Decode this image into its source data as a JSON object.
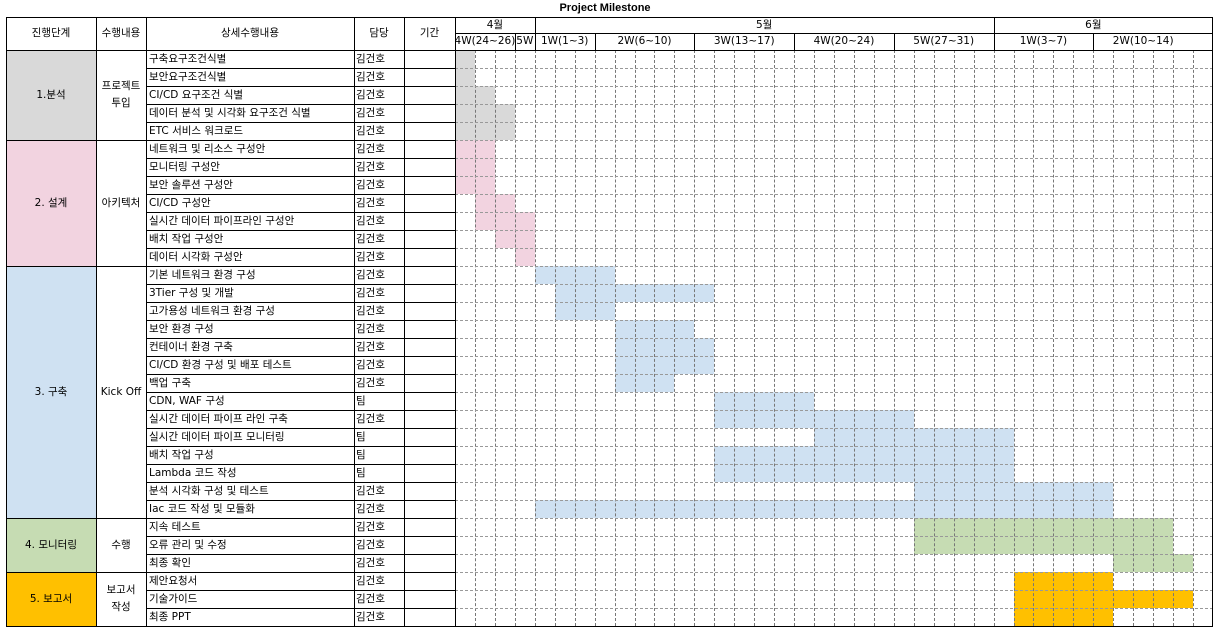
{
  "title": "Project Milestone",
  "headers": {
    "phase": "진행단계",
    "activity": "수행내용",
    "detail": "상세수행내용",
    "owner": "담당",
    "duration": "기간"
  },
  "months": [
    {
      "label": "4월",
      "span": 4
    },
    {
      "label": "5월",
      "span": 23
    },
    {
      "label": "6월",
      "span": 10
    }
  ],
  "weeks": [
    {
      "label": "4W(24~26)",
      "span": 3
    },
    {
      "label": "5W",
      "span": 1
    },
    {
      "label": "1W(1~3)",
      "span": 3
    },
    {
      "label": "2W(6~10)",
      "span": 5
    },
    {
      "label": "3W(13~17)",
      "span": 5
    },
    {
      "label": "4W(20~24)",
      "span": 5
    },
    {
      "label": "5W(27~31)",
      "span": 5
    },
    {
      "label": "1W(3~7)",
      "span": 5
    },
    {
      "label": "2W(10~14)",
      "span": 5
    }
  ],
  "phases": [
    {
      "name": "1.분석",
      "activity": "프로젝트\n투입",
      "color": "#d9d9d9",
      "rows": [
        0,
        4
      ]
    },
    {
      "name": "2. 설계",
      "activity": "아키텍처",
      "color": "#f2d3e0",
      "rows": [
        5,
        11
      ]
    },
    {
      "name": "3. 구축",
      "activity": "Kick Off",
      "color": "#cfe1f2",
      "rows": [
        12,
        25
      ]
    },
    {
      "name": "4. 모니터링",
      "activity": "수행",
      "color": "#c6dcb3",
      "rows": [
        26,
        28
      ]
    },
    {
      "name": "5. 보고서",
      "activity": "보고서\n작성",
      "color": "#ffc000",
      "rows": [
        29,
        31
      ]
    }
  ],
  "tasks": [
    {
      "name": "구축요구조건식별",
      "owner": "김건호",
      "phase": 0,
      "start": 0,
      "end": 1
    },
    {
      "name": "보안요구조건식별",
      "owner": "김건호",
      "phase": 0,
      "start": 0,
      "end": 1
    },
    {
      "name": "CI/CD 요구조건 식별",
      "owner": "김건호",
      "phase": 0,
      "start": 0,
      "end": 2
    },
    {
      "name": "데이터 분석 및 시각화 요구조건 식별",
      "owner": "김건호",
      "phase": 0,
      "start": 0,
      "end": 3
    },
    {
      "name": "ETC 서비스 워크로드",
      "owner": "김건호",
      "phase": 0,
      "start": 0,
      "end": 3
    },
    {
      "name": "네트워크 및 리소스 구성안",
      "owner": "김건호",
      "phase": 1,
      "start": 0,
      "end": 2
    },
    {
      "name": "모니터링 구성안",
      "owner": "김건호",
      "phase": 1,
      "start": 0,
      "end": 2
    },
    {
      "name": "보안 솔루션 구성안",
      "owner": "김건호",
      "phase": 1,
      "start": 0,
      "end": 2
    },
    {
      "name": "CI/CD 구성안",
      "owner": "김건호",
      "phase": 1,
      "start": 1,
      "end": 3
    },
    {
      "name": "실시간 데이터 파이프라인 구성안",
      "owner": "김건호",
      "phase": 1,
      "start": 1,
      "end": 4
    },
    {
      "name": "배치 작업 구성안",
      "owner": "김건호",
      "phase": 1,
      "start": 2,
      "end": 4
    },
    {
      "name": "데이터 시각화 구성안",
      "owner": "김건호",
      "phase": 1,
      "start": 3,
      "end": 4
    },
    {
      "name": "기본 네트워크 환경 구성",
      "owner": "김건호",
      "phase": 2,
      "start": 4,
      "end": 8
    },
    {
      "name": "3Tier 구성 및 개발",
      "owner": "김건호",
      "phase": 2,
      "start": 5,
      "end": 13
    },
    {
      "name": "고가용성 네트워크 환경 구성",
      "owner": "김건호",
      "phase": 2,
      "start": 5,
      "end": 8
    },
    {
      "name": "보안 환경 구성",
      "owner": "김건호",
      "phase": 2,
      "start": 8,
      "end": 12
    },
    {
      "name": "컨테이너 환경 구축",
      "owner": "김건호",
      "phase": 2,
      "start": 8,
      "end": 13
    },
    {
      "name": "CI/CD 환경 구성 및 배포 테스트",
      "owner": "김건호",
      "phase": 2,
      "start": 8,
      "end": 13
    },
    {
      "name": "백업 구축",
      "owner": "김건호",
      "phase": 2,
      "start": 8,
      "end": 11
    },
    {
      "name": "CDN, WAF 구성",
      "owner": "팀",
      "phase": 2,
      "start": 13,
      "end": 18
    },
    {
      "name": "실시간 데이터 파이프 라인 구축",
      "owner": "김건호",
      "phase": 2,
      "start": 13,
      "end": 23
    },
    {
      "name": "실시간 데이터 파이프 모니터링",
      "owner": "팀",
      "phase": 2,
      "start": 18,
      "end": 28
    },
    {
      "name": "배치 작업 구성",
      "owner": "팀",
      "phase": 2,
      "start": 13,
      "end": 28
    },
    {
      "name": "Lambda 코드 작성",
      "owner": "팀",
      "phase": 2,
      "start": 13,
      "end": 28
    },
    {
      "name": "분석 시각화 구성 및 테스트",
      "owner": "김건호",
      "phase": 2,
      "start": 23,
      "end": 33
    },
    {
      "name": "Iac 코드 작성 및 모듈화",
      "owner": "김건호",
      "phase": 2,
      "start": 4,
      "end": 33
    },
    {
      "name": "지속 테스트",
      "owner": "김건호",
      "phase": 3,
      "start": 23,
      "end": 36
    },
    {
      "name": "오류 관리 및 수정",
      "owner": "김건호",
      "phase": 3,
      "start": 23,
      "end": 36
    },
    {
      "name": "최종 확인",
      "owner": "김건호",
      "phase": 3,
      "start": 33,
      "end": 37
    },
    {
      "name": "제안요청서",
      "owner": "김건호",
      "phase": 4,
      "start": 28,
      "end": 33
    },
    {
      "name": "기술가이드",
      "owner": "김건호",
      "phase": 4,
      "start": 28,
      "end": 37
    },
    {
      "name": "최종 PPT",
      "owner": "김건호",
      "phase": 4,
      "start": 28,
      "end": 33
    }
  ]
}
